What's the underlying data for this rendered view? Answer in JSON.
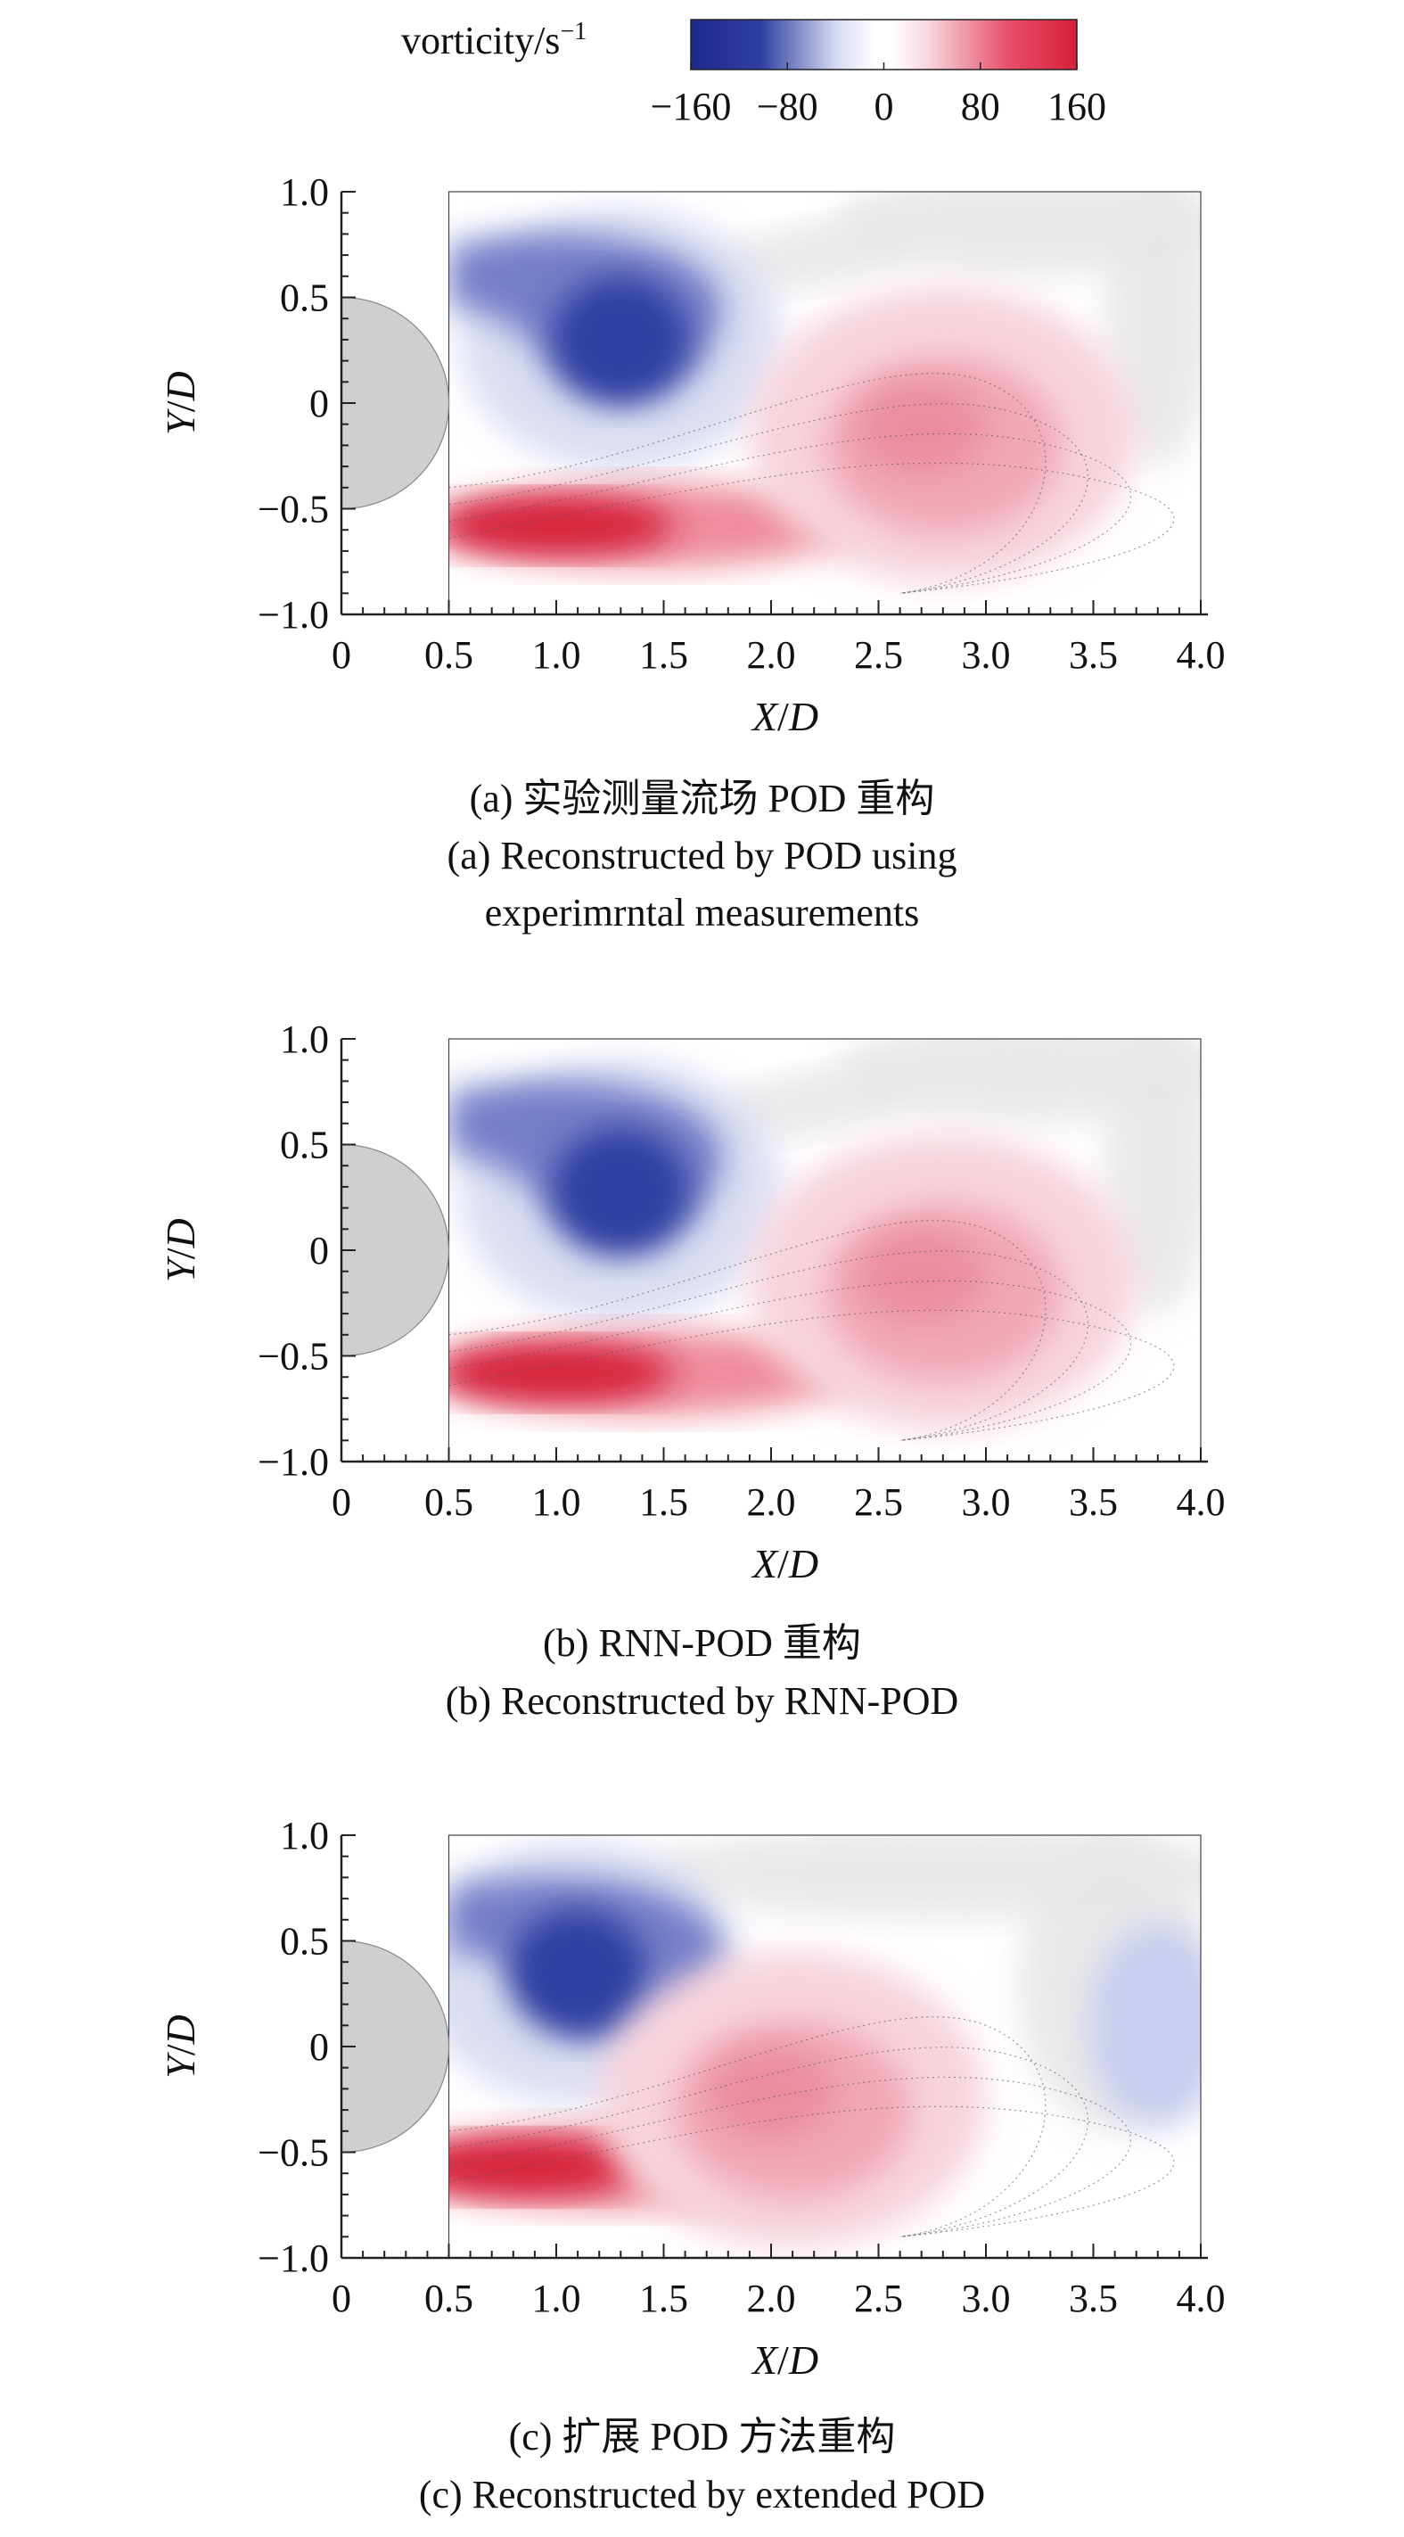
{
  "colorbar": {
    "label": "vorticity/s",
    "label_sup": "−1",
    "ticks": [
      "−160",
      "−80",
      "0",
      "80",
      "160"
    ],
    "colors": {
      "neg_strong": "#2f3fa0",
      "neg_light": "#d9dcf2",
      "zero": "#ffffff",
      "pos_light": "#f7d3dc",
      "pos_strong": "#d6203a",
      "cylinder": "#cfcfcf",
      "background_band": "#e6e6e6"
    }
  },
  "chart_data": [
    {
      "type": "heatmap",
      "xlabel_main": "X",
      "xlabel_sub": "/",
      "xlabel_end": "D",
      "ylabel_main": "Y",
      "ylabel_sub": "/",
      "ylabel_end": "D",
      "xlim": [
        0,
        4.0
      ],
      "ylim": [
        -1.0,
        1.0
      ],
      "x_ticks": [
        "0",
        "0.5",
        "1.0",
        "1.5",
        "2.0",
        "2.5",
        "3.0",
        "3.5",
        "4.0"
      ],
      "y_ticks": [
        "1.0",
        "0.5",
        "0",
        "−0.5",
        "−1.0"
      ],
      "data_region": {
        "x": [
          0.5,
          4.0
        ],
        "y": [
          -1.0,
          1.0
        ]
      },
      "structures": [
        {
          "kind": "negative_vortex",
          "x": 1.3,
          "y": 0.3,
          "vorticity_peak": -160
        },
        {
          "kind": "positive_shear_layer",
          "x": 1.0,
          "y": -0.58,
          "vorticity_peak": 160
        },
        {
          "kind": "positive_vortex",
          "x": 2.8,
          "y": -0.2,
          "vorticity_peak": 70
        }
      ],
      "caption_cn": "(a) 实验测量流场 POD 重构",
      "caption_en": [
        "(a) Reconstructed by POD using",
        "experimrntal measurements"
      ]
    },
    {
      "type": "heatmap",
      "xlabel_main": "X",
      "xlabel_sub": "/",
      "xlabel_end": "D",
      "ylabel_main": "Y",
      "ylabel_sub": "/",
      "ylabel_end": "D",
      "xlim": [
        0,
        4.0
      ],
      "ylim": [
        -1.0,
        1.0
      ],
      "x_ticks": [
        "0",
        "0.5",
        "1.0",
        "1.5",
        "2.0",
        "2.5",
        "3.0",
        "3.5",
        "4.0"
      ],
      "y_ticks": [
        "1.0",
        "0.5",
        "0",
        "−0.5",
        "−1.0"
      ],
      "data_region": {
        "x": [
          0.5,
          4.0
        ],
        "y": [
          -1.0,
          1.0
        ]
      },
      "structures": [
        {
          "kind": "negative_vortex",
          "x": 1.3,
          "y": 0.28,
          "vorticity_peak": -160
        },
        {
          "kind": "positive_shear_layer",
          "x": 1.0,
          "y": -0.58,
          "vorticity_peak": 160
        },
        {
          "kind": "positive_vortex",
          "x": 2.8,
          "y": -0.2,
          "vorticity_peak": 70
        }
      ],
      "caption_cn": "(b) RNN-POD 重构",
      "caption_en": [
        "(b) Reconstructed by RNN-POD"
      ]
    },
    {
      "type": "heatmap",
      "xlabel_main": "X",
      "xlabel_sub": "/",
      "xlabel_end": "D",
      "ylabel_main": "Y",
      "ylabel_sub": "/",
      "ylabel_end": "D",
      "xlim": [
        0,
        4.0
      ],
      "ylim": [
        -1.0,
        1.0
      ],
      "x_ticks": [
        "0",
        "0.5",
        "1.0",
        "1.5",
        "2.0",
        "2.5",
        "3.0",
        "3.5",
        "4.0"
      ],
      "y_ticks": [
        "1.0",
        "0.5",
        "0",
        "−0.5",
        "−1.0"
      ],
      "data_region": {
        "x": [
          0.5,
          4.0
        ],
        "y": [
          -1.0,
          1.0
        ]
      },
      "structures": [
        {
          "kind": "negative_vortex",
          "x": 1.1,
          "y": 0.35,
          "vorticity_peak": -160
        },
        {
          "kind": "positive_shear_layer",
          "x": 0.85,
          "y": -0.57,
          "vorticity_peak": 160
        },
        {
          "kind": "positive_vortex",
          "x": 2.1,
          "y": -0.3,
          "vorticity_peak": 70
        },
        {
          "kind": "negative_vortex_weak",
          "x": 3.8,
          "y": 0.1,
          "vorticity_peak": -30
        }
      ],
      "caption_cn": "(c) 扩展 POD 方法重构",
      "caption_en": [
        "(c) Reconstructed by extended POD"
      ]
    }
  ]
}
